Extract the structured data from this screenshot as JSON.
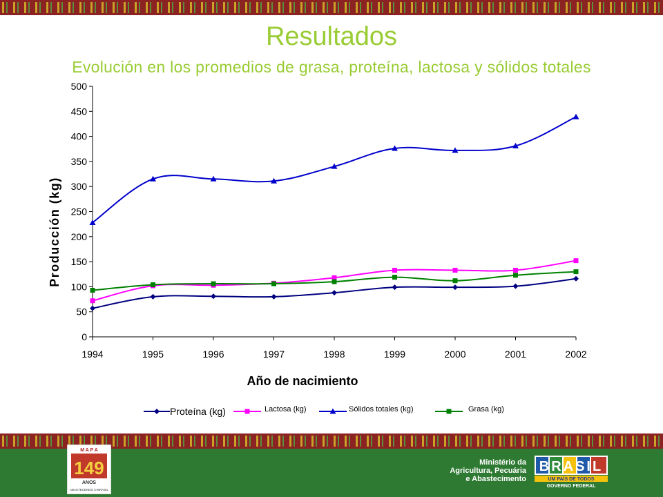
{
  "page": {
    "title": "Resultados",
    "subtitle": "Evolución en los promedios de grasa, proteína, lactosa y sólidos totales"
  },
  "footer": {
    "ministry_lines": [
      "Ministério da",
      "Agricultura, Pecuária",
      "e Abastecimento"
    ],
    "mapa_letters": "M A P A",
    "mapa_number": "149",
    "mapa_caption": "ANOS",
    "mapa_tagline": "ABASTECENDO O BRASIL",
    "brasil_word": "BRASIL",
    "brasil_tagline": "UM PAÍS DE TODOS",
    "brasil_gov": "GOVERNO FEDERAL"
  },
  "colors": {
    "title": "#99cc33",
    "footer_green": "#2f7a32",
    "band_red": "#8b2323",
    "band_gold": "#c9a227"
  },
  "chart_data": {
    "type": "line",
    "categories": [
      "1994",
      "1995",
      "1996",
      "1997",
      "1998",
      "1999",
      "2000",
      "2001",
      "2002"
    ],
    "ylim": [
      0,
      500
    ],
    "yticks": [
      0,
      50,
      100,
      150,
      200,
      250,
      300,
      350,
      400,
      450,
      500
    ],
    "xlabel": "Año de nacimiento",
    "ylabel": "Producción (kg)",
    "legend_position": "bottom",
    "grid": false,
    "series": [
      {
        "name": "Proteína (kg)",
        "color": "#000080",
        "marker": "diamond",
        "values": [
          57,
          80,
          81,
          80,
          88,
          99,
          99,
          101,
          116
        ]
      },
      {
        "name": "Lactosa (kg)",
        "color": "#ff00ff",
        "marker": "square",
        "values": [
          72,
          102,
          103,
          107,
          118,
          133,
          133,
          133,
          152
        ]
      },
      {
        "name": "Sólidos totales (kg)",
        "color": "#0000cc",
        "marker": "triangle",
        "values": [
          228,
          315,
          315,
          311,
          340,
          376,
          372,
          381,
          439
        ]
      },
      {
        "name": "Grasa (kg)",
        "color": "#008000",
        "marker": "square",
        "values": [
          93,
          104,
          106,
          106,
          110,
          119,
          112,
          123,
          130
        ]
      }
    ]
  }
}
